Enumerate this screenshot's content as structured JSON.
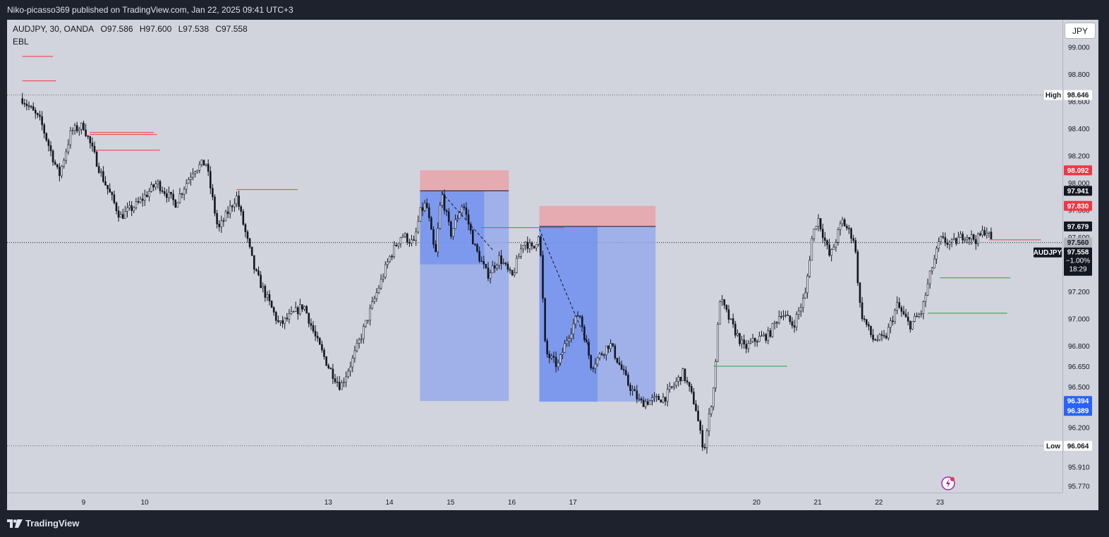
{
  "header": {
    "publisher_line": "Niko-picasso369 published on TradingView.com, Jan 22, 2025 09:41 UTC+3"
  },
  "legend": {
    "symbol": "AUDJPY, 30, OANDA",
    "open": "O97.586",
    "high": "H97.600",
    "low": "L97.538",
    "close": "C97.558",
    "indicator": "EBL"
  },
  "currency_button": "JPY",
  "footer": {
    "brand": "TradingView",
    "logo_icon": "tradingview-logo-icon"
  },
  "colors": {
    "background": "#d1d4dc",
    "candle": "#131722",
    "stop_zone": "#e8a5ac",
    "target_zone": "#8ea6ec",
    "target_zone_active": "#6f8ff0",
    "red_level": "#f23645",
    "green_level": "#26a145",
    "price_tag_red": "#f23645",
    "price_tag_dark": "#131722",
    "price_tag_blue": "#2962ff"
  },
  "chart_data": {
    "type": "candlestick",
    "symbol": "AUDJPY",
    "timeframe": "30",
    "exchange": "OANDA",
    "ylim": [
      95.72,
      99.2
    ],
    "x_tick_labels": [
      "9",
      "10",
      "13",
      "14",
      "15",
      "16",
      "17",
      "20",
      "21",
      "22",
      "23"
    ],
    "x_tick_index": [
      9,
      10,
      13,
      14,
      15,
      16,
      17,
      20,
      21,
      22,
      23
    ],
    "y_tick_labels": [
      "99.000",
      "98.800",
      "98.600",
      "98.400",
      "98.200",
      "98.000",
      "97.800",
      "97.600",
      "97.200",
      "97.000",
      "96.800",
      "96.650",
      "96.500",
      "96.200",
      "95.910",
      "95.770"
    ],
    "y_tick_values": [
      99.0,
      98.8,
      98.6,
      98.4,
      98.2,
      98.0,
      97.8,
      97.6,
      97.2,
      97.0,
      96.8,
      96.65,
      96.5,
      96.2,
      95.91,
      95.77
    ],
    "price_path": [
      [
        8.0,
        98.62
      ],
      [
        8.3,
        98.45
      ],
      [
        8.6,
        98.05
      ],
      [
        8.8,
        98.38
      ],
      [
        9.0,
        98.42
      ],
      [
        9.3,
        98.05
      ],
      [
        9.6,
        97.75
      ],
      [
        9.9,
        97.85
      ],
      [
        10.2,
        98.0
      ],
      [
        10.5,
        97.85
      ],
      [
        10.8,
        98.1
      ],
      [
        11.0,
        98.15
      ],
      [
        11.2,
        97.65
      ],
      [
        11.5,
        97.9
      ],
      [
        11.8,
        97.35
      ],
      [
        12.2,
        96.95
      ],
      [
        12.6,
        97.1
      ],
      [
        12.8,
        96.85
      ],
      [
        13.0,
        96.65
      ],
      [
        13.2,
        96.5
      ],
      [
        13.4,
        96.7
      ],
      [
        13.6,
        96.95
      ],
      [
        13.8,
        97.2
      ],
      [
        14.0,
        97.45
      ],
      [
        14.2,
        97.62
      ],
      [
        14.4,
        97.55
      ],
      [
        14.5,
        97.78
      ],
      [
        14.6,
        97.85
      ],
      [
        14.75,
        97.45
      ],
      [
        14.85,
        97.93
      ],
      [
        15.0,
        97.62
      ],
      [
        15.2,
        97.85
      ],
      [
        15.4,
        97.52
      ],
      [
        15.6,
        97.32
      ],
      [
        15.8,
        97.45
      ],
      [
        16.0,
        97.3
      ],
      [
        16.2,
        97.58
      ],
      [
        16.35,
        97.5
      ],
      [
        16.45,
        97.65
      ],
      [
        16.55,
        96.75
      ],
      [
        16.75,
        96.65
      ],
      [
        16.9,
        96.85
      ],
      [
        17.1,
        97.05
      ],
      [
        17.3,
        96.65
      ],
      [
        17.6,
        96.82
      ],
      [
        17.9,
        96.52
      ],
      [
        18.1,
        96.38
      ],
      [
        18.5,
        96.42
      ],
      [
        18.8,
        96.6
      ],
      [
        19.0,
        96.36
      ],
      [
        19.1,
        96.1
      ],
      [
        19.15,
        96.06
      ],
      [
        19.3,
        96.5
      ],
      [
        19.4,
        97.15
      ],
      [
        19.6,
        96.95
      ],
      [
        19.8,
        96.78
      ],
      [
        20.0,
        96.85
      ],
      [
        20.2,
        96.88
      ],
      [
        20.4,
        97.05
      ],
      [
        20.6,
        96.95
      ],
      [
        20.8,
        97.18
      ],
      [
        20.9,
        97.58
      ],
      [
        21.0,
        97.75
      ],
      [
        21.2,
        97.45
      ],
      [
        21.4,
        97.72
      ],
      [
        21.6,
        97.58
      ],
      [
        21.7,
        97.05
      ],
      [
        21.9,
        96.85
      ],
      [
        22.1,
        96.85
      ],
      [
        22.3,
        97.1
      ],
      [
        22.5,
        96.95
      ],
      [
        22.7,
        97.05
      ],
      [
        22.85,
        97.35
      ],
      [
        23.0,
        97.58
      ],
      [
        23.2,
        97.55
      ],
      [
        23.4,
        97.62
      ],
      [
        23.6,
        97.58
      ],
      [
        23.75,
        97.66
      ],
      [
        23.85,
        97.56
      ]
    ],
    "session_high": {
      "label": "High",
      "value": "98.646"
    },
    "session_low": {
      "label": "Low",
      "value": "96.064"
    },
    "current_price_tags": {
      "symbol": "AUDJPY",
      "price": "97.558",
      "change": "−1.00%",
      "countdown": "18:29",
      "line_value": "97.560"
    },
    "price_tags": [
      {
        "value": "98.092",
        "style": "red"
      },
      {
        "value": "97.941",
        "style": "dark"
      },
      {
        "value": "97.830",
        "style": "red"
      },
      {
        "value": "97.679",
        "style": "dark"
      },
      {
        "value": "96.394",
        "style": "blue"
      },
      {
        "value": "96.389",
        "style": "blue"
      }
    ],
    "positions": [
      {
        "type": "short",
        "x_start": 14.5,
        "x_end": 15.95,
        "entry": 97.941,
        "stop": 98.092,
        "target": 96.394,
        "active_until_x": 15.55,
        "active_low": 97.4
      },
      {
        "type": "short",
        "x_start": 16.45,
        "x_end": 18.35,
        "entry": 97.679,
        "stop": 97.83,
        "target": 96.389,
        "active_until_x": 17.4,
        "active_low": 96.389
      }
    ],
    "red_levels": [
      {
        "price": 98.93,
        "x_start": 8.0,
        "x_end": 8.5
      },
      {
        "price": 98.75,
        "x_start": 8.0,
        "x_end": 8.55
      },
      {
        "price": 98.37,
        "x_start": 9.1,
        "x_end": 10.15
      },
      {
        "price": 98.355,
        "x_start": 9.1,
        "x_end": 10.2
      },
      {
        "price": 98.24,
        "x_start": 9.2,
        "x_end": 10.25
      },
      {
        "price": 97.95,
        "x_start": 11.5,
        "x_end": 12.5
      },
      {
        "price": 97.67,
        "x_start": 15.5,
        "x_end": 16.85
      },
      {
        "price": 97.58,
        "x_start": 23.8,
        "x_end": 24.65
      }
    ],
    "green_levels": [
      {
        "price": 97.3,
        "x_start": 23.0,
        "x_end": 24.15
      },
      {
        "price": 97.04,
        "x_start": 22.8,
        "x_end": 24.1
      },
      {
        "price": 96.65,
        "x_start": 19.3,
        "x_end": 20.5
      }
    ],
    "dashed_projections": [
      {
        "from": [
          14.85,
          97.93
        ],
        "to": [
          15.7,
          97.5
        ]
      },
      {
        "from": [
          16.45,
          97.66
        ],
        "to": [
          17.25,
          96.8
        ]
      }
    ]
  }
}
